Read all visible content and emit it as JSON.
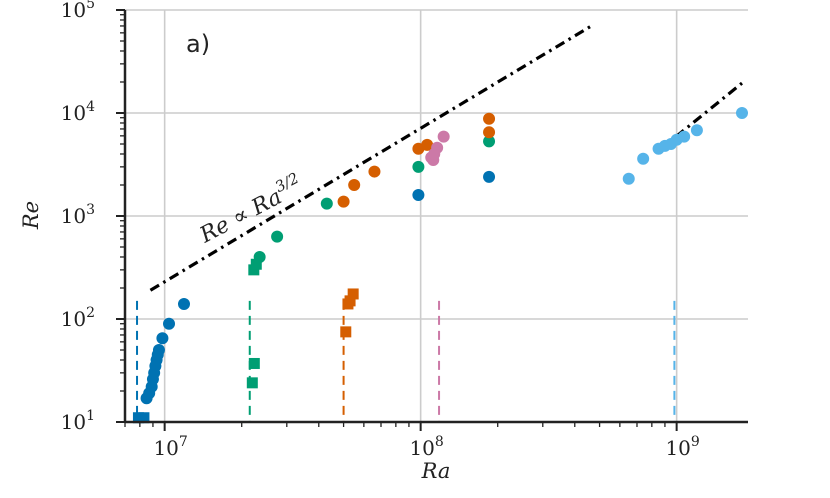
{
  "chart_data": {
    "type": "scatter",
    "panel_label": "a)",
    "xlabel": "Ra",
    "ylabel": "Re",
    "x_scale": "log",
    "y_scale": "log",
    "xlim": [
      7000000,
      1900000000
    ],
    "ylim": [
      10,
      100000
    ],
    "x_ticks": [
      {
        "value": 10000000,
        "base": "10",
        "exp": "7"
      },
      {
        "value": 100000000,
        "base": "10",
        "exp": "8"
      },
      {
        "value": 1000000000,
        "base": "10",
        "exp": "9"
      }
    ],
    "y_ticks": [
      {
        "value": 10,
        "base": "10",
        "exp": "1"
      },
      {
        "value": 100,
        "base": "10",
        "exp": "2"
      },
      {
        "value": 1000,
        "base": "10",
        "exp": "3"
      },
      {
        "value": 10000,
        "base": "10",
        "exp": "4"
      },
      {
        "value": 100000,
        "base": "10",
        "exp": "5"
      }
    ],
    "grid": true,
    "annotation": {
      "text_main": "Re ∝ Ra",
      "text_exp": "3/2"
    },
    "scaling_lines": [
      {
        "x": [
          8800000,
          460000000
        ],
        "y": [
          190,
          69000
        ]
      },
      {
        "x": [
          850000000,
          1800000000
        ],
        "y": [
          4300,
          19500
        ]
      }
    ],
    "series": [
      {
        "color": "#0072b2",
        "vline_x": 7800000,
        "circles": [
          [
            8500000,
            17
          ],
          [
            8700000,
            19
          ],
          [
            8900000,
            22
          ],
          [
            9000000,
            26
          ],
          [
            9100000,
            30
          ],
          [
            9200000,
            35
          ],
          [
            9300000,
            40
          ],
          [
            9400000,
            45
          ],
          [
            9500000,
            50
          ],
          [
            9800000,
            65
          ],
          [
            10400000,
            90
          ],
          [
            11900000,
            140
          ],
          [
            98000000,
            1600
          ],
          [
            185000000,
            2400
          ]
        ],
        "squares": [
          [
            7900000,
            11
          ],
          [
            8300000,
            11
          ]
        ]
      },
      {
        "color": "#009e73",
        "vline_x": 21500000,
        "circles": [
          [
            23500000,
            400
          ],
          [
            27500000,
            630
          ],
          [
            43000000,
            1320
          ],
          [
            98000000,
            3000
          ],
          [
            185000000,
            5300
          ]
        ],
        "squares": [
          [
            22000000,
            24
          ],
          [
            22400000,
            37
          ],
          [
            22300000,
            300
          ],
          [
            22800000,
            340
          ]
        ]
      },
      {
        "color": "#d55e00",
        "vline_x": 50000000,
        "circles": [
          [
            50000000,
            1380
          ],
          [
            55000000,
            2000
          ],
          [
            66000000,
            2700
          ],
          [
            98000000,
            4500
          ],
          [
            106000000,
            4900
          ],
          [
            185000000,
            6500
          ],
          [
            185000000,
            8800
          ]
        ],
        "squares": [
          [
            51000000,
            75
          ],
          [
            52000000,
            140
          ],
          [
            53000000,
            150
          ],
          [
            54500000,
            175
          ]
        ]
      },
      {
        "color": "#cc79a7",
        "vline_x": 118000000,
        "circles": [
          [
            110000000,
            3700
          ],
          [
            112000000,
            3500
          ],
          [
            113000000,
            4000
          ],
          [
            116000000,
            4600
          ],
          [
            123000000,
            5900
          ]
        ],
        "squares": []
      },
      {
        "color": "#56b4e9",
        "vline_x": 980000000,
        "circles": [
          [
            650000000,
            2300
          ],
          [
            740000000,
            3600
          ],
          [
            850000000,
            4500
          ],
          [
            900000000,
            4800
          ],
          [
            950000000,
            5000
          ],
          [
            1000000000,
            5500
          ],
          [
            1070000000,
            5900
          ],
          [
            1200000000,
            6800
          ],
          [
            1800000000,
            10000
          ]
        ],
        "squares": []
      }
    ]
  }
}
